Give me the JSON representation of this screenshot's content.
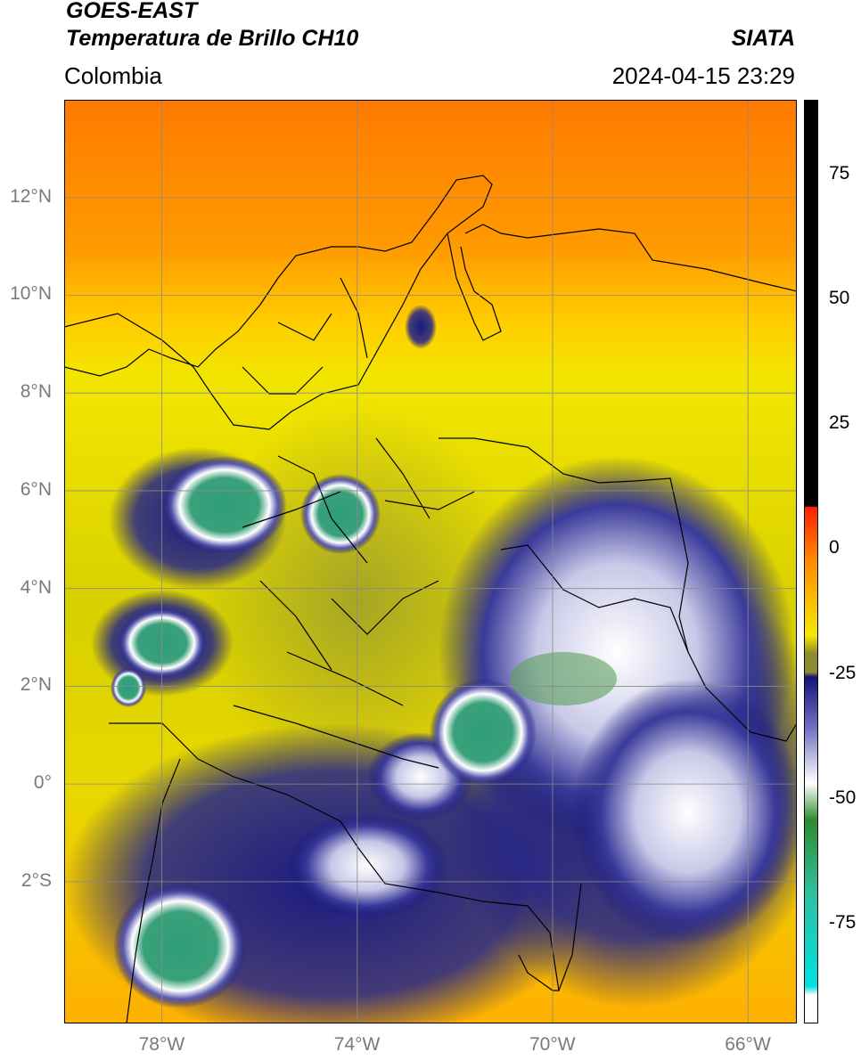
{
  "header": {
    "satellite": "GOES-EAST",
    "product": "Temperatura de Brillo CH10",
    "region": "Colombia",
    "organization": "SIATA",
    "datetime": "2024-04-15 23:29"
  },
  "map": {
    "lon_range": [
      -80,
      -65
    ],
    "lat_range": [
      -4.9,
      14
    ],
    "lat_ticks": [
      {
        "value": 12,
        "label": "12°N"
      },
      {
        "value": 10,
        "label": "10°N"
      },
      {
        "value": 8,
        "label": "8°N"
      },
      {
        "value": 6,
        "label": "6°N"
      },
      {
        "value": 4,
        "label": "4°N"
      },
      {
        "value": 2,
        "label": "2°N"
      },
      {
        "value": 0,
        "label": "0°"
      },
      {
        "value": -2,
        "label": "2°S"
      }
    ],
    "lon_ticks": [
      {
        "value": -78,
        "label": "78°W"
      },
      {
        "value": -74,
        "label": "74°W"
      },
      {
        "value": -70,
        "label": "70°W"
      },
      {
        "value": -66,
        "label": "66°W"
      }
    ],
    "gridlines": true
  },
  "colorbar": {
    "range": [
      -95,
      90
    ],
    "ticks": [
      {
        "value": 75,
        "label": "75"
      },
      {
        "value": 50,
        "label": "50"
      },
      {
        "value": 25,
        "label": "25"
      },
      {
        "value": 0,
        "label": "0"
      },
      {
        "value": -25,
        "label": "-25"
      },
      {
        "value": -50,
        "label": "-50"
      },
      {
        "value": -75,
        "label": "-75"
      }
    ],
    "colors": {
      "black": "#000000",
      "red": "#ff2000",
      "orange": "#ff8c00",
      "yellow": "#f5e800",
      "olive": "#8c8c30",
      "navy": "#14147a",
      "white": "#ffffff",
      "green": "#2e8b2e",
      "teal": "#30c0a0",
      "cyan": "#00e0e0"
    }
  }
}
